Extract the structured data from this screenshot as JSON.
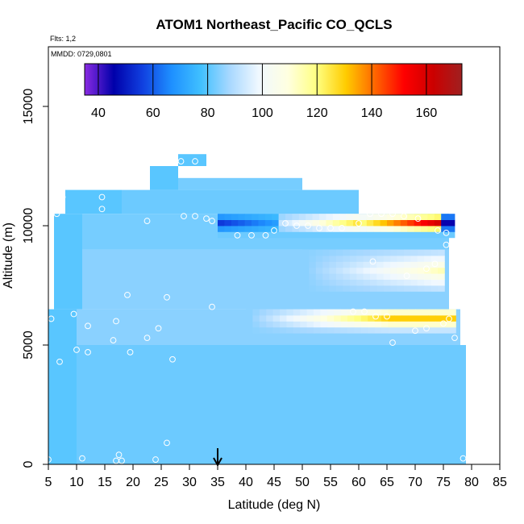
{
  "chart_data": {
    "type": "heatmap",
    "title": "ATOM1 Northeast_Pacific CO_QCLS",
    "flights_note": "Flts: 1,2",
    "date_note": "MMDD: 0729,0801",
    "xlabel": "Latitude (deg N)",
    "ylabel": "Altitude (m)",
    "xlim": [
      5,
      85
    ],
    "ylim": [
      0,
      17500
    ],
    "x_ticks": [
      5,
      10,
      15,
      20,
      25,
      30,
      35,
      40,
      45,
      50,
      55,
      60,
      65,
      70,
      75,
      80,
      85
    ],
    "y_ticks": [
      0,
      5000,
      10000,
      15000
    ],
    "colorbar": {
      "range": [
        35,
        173
      ],
      "ticks": [
        40,
        60,
        80,
        100,
        120,
        140,
        160
      ],
      "stops": [
        "#8a2be2",
        "#0000aa",
        "#1040e0",
        "#1e90ff",
        "#40c0ff",
        "#a8d8ff",
        "#f0f8ff",
        "#ffffe0",
        "#ffff80",
        "#ffcc00",
        "#ff6600",
        "#ff0000",
        "#cc0000",
        "#a02020"
      ]
    },
    "marker_latitude": 35,
    "field_description_values": {
      "background_co_ppb": 80,
      "upper_tropo_band": {
        "altitude_range": [
          9500,
          10500
        ],
        "lat_range": [
          35,
          76
        ],
        "low_value": 55,
        "high_value": 165
      },
      "mid_tropo_band": {
        "altitude_range": [
          5500,
          6500
        ],
        "lat_range": [
          40,
          77
        ],
        "peak_value": 130
      }
    },
    "cells": [
      {
        "lat0": 5,
        "lat1": 10,
        "alt0": 0,
        "alt1": 6500,
        "value": 80
      },
      {
        "lat0": 6,
        "lat1": 11,
        "alt0": 6500,
        "alt1": 10500,
        "value": 80
      },
      {
        "lat0": 8,
        "lat1": 18,
        "alt0": 10500,
        "alt1": 11500,
        "value": 80
      },
      {
        "lat0": 23,
        "lat1": 28,
        "alt0": 11500,
        "alt1": 12500,
        "value": 80
      },
      {
        "lat0": 28,
        "lat1": 33,
        "alt0": 12500,
        "alt1": 13000,
        "value": 80
      },
      {
        "lat0": 10,
        "lat1": 79,
        "alt0": 0,
        "alt1": 5000,
        "value": 82
      },
      {
        "lat0": 10,
        "lat1": 78,
        "alt0": 5000,
        "alt1": 6500,
        "value": 85
      },
      {
        "lat0": 11,
        "lat1": 76,
        "alt0": 6500,
        "alt1": 9000,
        "value": 85
      },
      {
        "lat0": 11,
        "lat1": 76,
        "alt0": 9000,
        "alt1": 10500,
        "value": 83
      },
      {
        "lat0": 18,
        "lat1": 60,
        "alt0": 10500,
        "alt1": 11500,
        "value": 82
      },
      {
        "lat0": 28,
        "lat1": 50,
        "alt0": 11500,
        "alt1": 12000,
        "value": 83
      }
    ],
    "points": [
      [
        5,
        200
      ],
      [
        11,
        250
      ],
      [
        17.5,
        400
      ],
      [
        17,
        150
      ],
      [
        18,
        150
      ],
      [
        24,
        200
      ],
      [
        26,
        900
      ],
      [
        78.5,
        250
      ],
      [
        7,
        4300
      ],
      [
        10,
        4800
      ],
      [
        12,
        4700
      ],
      [
        19.5,
        4700
      ],
      [
        27,
        4400
      ],
      [
        66,
        5100
      ],
      [
        77,
        5300
      ],
      [
        5.5,
        6100
      ],
      [
        9.5,
        6300
      ],
      [
        12,
        5800
      ],
      [
        16.5,
        5200
      ],
      [
        17,
        6000
      ],
      [
        22.5,
        5300
      ],
      [
        24.5,
        5700
      ],
      [
        26,
        7000
      ],
      [
        34,
        6600
      ],
      [
        19,
        7100
      ],
      [
        6.5,
        10500
      ],
      [
        7.5,
        11200
      ],
      [
        14.5,
        11200
      ],
      [
        14.5,
        10700
      ],
      [
        21.5,
        11900
      ],
      [
        22.5,
        10200
      ],
      [
        28.5,
        12700
      ],
      [
        31,
        12700
      ],
      [
        29,
        10400
      ],
      [
        31,
        10400
      ],
      [
        33,
        10300
      ],
      [
        34,
        10200
      ],
      [
        38.5,
        9600
      ],
      [
        41,
        9600
      ],
      [
        43.5,
        9600
      ],
      [
        45,
        9800
      ],
      [
        47,
        10100
      ],
      [
        49,
        10000
      ],
      [
        51,
        10000
      ],
      [
        53,
        9900
      ],
      [
        55,
        9900
      ],
      [
        57,
        9900
      ],
      [
        60,
        10100
      ],
      [
        62,
        10500
      ],
      [
        64,
        10500
      ],
      [
        66,
        10500
      ],
      [
        68,
        10400
      ],
      [
        70.5,
        10300
      ],
      [
        74,
        9800
      ],
      [
        75.5,
        9700
      ],
      [
        75.5,
        9200
      ],
      [
        73.5,
        8400
      ],
      [
        72,
        8200
      ],
      [
        68.5,
        7900
      ],
      [
        62.5,
        8500
      ],
      [
        59,
        6400
      ],
      [
        61,
        6400
      ],
      [
        63,
        6200
      ],
      [
        65,
        6200
      ],
      [
        70,
        5600
      ],
      [
        72,
        5700
      ],
      [
        75,
        5900
      ],
      [
        76,
        6100
      ]
    ]
  }
}
